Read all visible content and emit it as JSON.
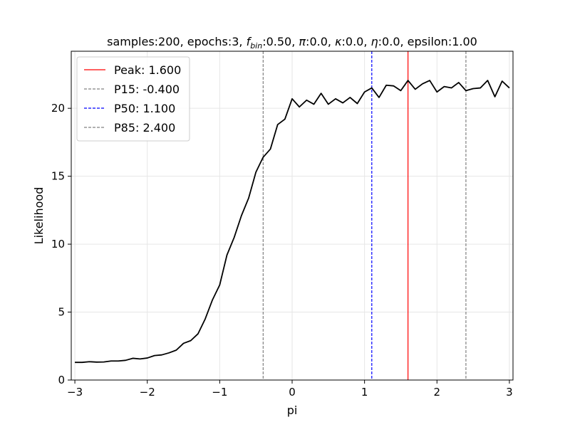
{
  "chart_data": {
    "type": "line",
    "title_parts": [
      {
        "text": "samples:200, epochs:3, "
      },
      {
        "text": "f",
        "italic": true
      },
      {
        "text": "bin",
        "italic": true,
        "sub": true
      },
      {
        "text": ":0.50, "
      },
      {
        "text": "π",
        "italic": true
      },
      {
        "text": ":0.0, "
      },
      {
        "text": "κ",
        "italic": true
      },
      {
        "text": ":0.0, "
      },
      {
        "text": "η",
        "italic": true
      },
      {
        "text": ":0.0, epsilon:1.00"
      }
    ],
    "xlabel": "pi",
    "ylabel": "Likelihood",
    "xlim": [
      -3.05,
      3.05
    ],
    "ylim": [
      0,
      24.2
    ],
    "xticks": [
      -3,
      -2,
      -1,
      0,
      1,
      2,
      3
    ],
    "xtick_labels": [
      "−3",
      "−2",
      "−1",
      "0",
      "1",
      "2",
      "3"
    ],
    "yticks": [
      0,
      5,
      10,
      15,
      20
    ],
    "ytick_labels": [
      "0",
      "5",
      "10",
      "15",
      "20"
    ],
    "grid": true,
    "legend_position": "top-left",
    "series": [
      {
        "color": "#000000",
        "x": [
          -3.0,
          -2.9,
          -2.8,
          -2.7,
          -2.6,
          -2.5,
          -2.4,
          -2.3,
          -2.2,
          -2.1,
          -2.0,
          -1.9,
          -1.8,
          -1.7,
          -1.6,
          -1.5,
          -1.4,
          -1.3,
          -1.2,
          -1.1,
          -1.0,
          -0.9,
          -0.8,
          -0.7,
          -0.6,
          -0.5,
          -0.4,
          -0.3,
          -0.2,
          -0.1,
          0.0,
          0.1,
          0.2,
          0.3,
          0.4,
          0.5,
          0.6,
          0.7,
          0.8,
          0.9,
          1.0,
          1.1,
          1.2,
          1.3,
          1.4,
          1.5,
          1.6,
          1.7,
          1.8,
          1.9,
          2.0,
          2.1,
          2.2,
          2.3,
          2.4,
          2.5,
          2.6,
          2.7,
          2.8,
          2.9,
          3.0
        ],
        "y": [
          1.3,
          1.3,
          1.35,
          1.32,
          1.33,
          1.4,
          1.4,
          1.45,
          1.6,
          1.55,
          1.62,
          1.8,
          1.85,
          2.0,
          2.2,
          2.7,
          2.9,
          3.4,
          4.5,
          5.9,
          7.0,
          9.2,
          10.5,
          12.1,
          13.4,
          15.3,
          16.4,
          17.0,
          18.8,
          19.2,
          20.7,
          20.1,
          20.6,
          20.3,
          21.1,
          20.3,
          20.7,
          20.4,
          20.8,
          20.35,
          21.2,
          21.5,
          20.8,
          21.7,
          21.65,
          21.3,
          22.05,
          21.4,
          21.8,
          22.05,
          21.2,
          21.6,
          21.5,
          21.9,
          21.3,
          21.45,
          21.5,
          22.05,
          20.85,
          22.0,
          21.5
        ]
      }
    ],
    "vlines": [
      {
        "label": "Peak: 1.600",
        "x": 1.6,
        "color": "#ff0000",
        "style": "solid"
      },
      {
        "label": "P15: -0.400",
        "x": -0.4,
        "color": "#808080",
        "style": "dashed"
      },
      {
        "label": "P50: 1.100",
        "x": 1.1,
        "color": "#0000ff",
        "style": "dashed"
      },
      {
        "label": "P85: 2.400",
        "x": 2.4,
        "color": "#808080",
        "style": "dashed"
      }
    ]
  }
}
